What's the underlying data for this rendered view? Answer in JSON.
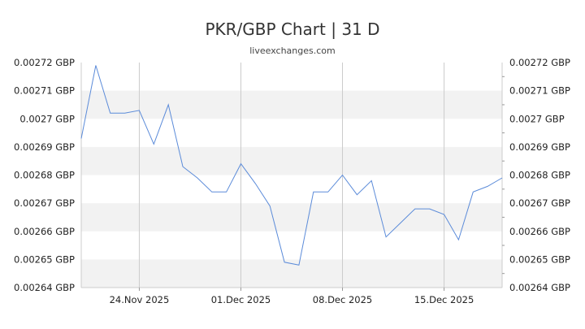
{
  "title": "PKR/GBP Chart | 31 D",
  "subtitle": "liveexchanges.com",
  "chart_data": {
    "type": "line",
    "title": "PKR/GBP Chart | 31 D",
    "subtitle": "liveexchanges.com",
    "xlabel": "",
    "ylabel": "",
    "x_tick_labels": [
      "24.Nov 2025",
      "01.Dec 2025",
      "08.Dec 2025",
      "15.Dec 2025"
    ],
    "x_tick_days": [
      4,
      11,
      18,
      25
    ],
    "y_tick_labels": [
      "0.00272 GBP",
      "0.00271 GBP",
      "0.0027 GBP",
      "0.00269 GBP",
      "0.00268 GBP",
      "0.00267 GBP",
      "0.00266 GBP",
      "0.00265 GBP",
      "0.00264 GBP"
    ],
    "y_tick_values": [
      0.00272,
      0.00271,
      0.0027,
      0.00269,
      0.00268,
      0.00267,
      0.00266,
      0.00265,
      0.00264
    ],
    "ylim": [
      0.00264,
      0.00272
    ],
    "grid": true,
    "line_color": "#5b8bd9",
    "band_color": "#f2f2f2",
    "series": [
      {
        "x": [
          "2025-11-20",
          "2025-11-21",
          "2025-11-22",
          "2025-11-23",
          "2025-11-24",
          "2025-11-25",
          "2025-11-26",
          "2025-11-27",
          "2025-11-28",
          "2025-11-29",
          "2025-11-30",
          "2025-12-01",
          "2025-12-02",
          "2025-12-03",
          "2025-12-04",
          "2025-12-05",
          "2025-12-06",
          "2025-12-07",
          "2025-12-08",
          "2025-12-09",
          "2025-12-10",
          "2025-12-11",
          "2025-12-12",
          "2025-12-13",
          "2025-12-14",
          "2025-12-15",
          "2025-12-16",
          "2025-12-17",
          "2025-12-18",
          "2025-12-19"
        ],
        "values": [
          0.002693,
          0.002719,
          0.002702,
          0.002702,
          0.002703,
          0.002691,
          0.002705,
          0.002683,
          0.002679,
          0.002674,
          0.002674,
          0.002684,
          0.002677,
          0.002669,
          0.002649,
          0.002648,
          0.002674,
          0.002674,
          0.00268,
          0.002673,
          0.002678,
          0.002658,
          0.002663,
          0.002668,
          0.002668,
          0.002666,
          0.002657,
          0.002674,
          0.002676,
          0.002679
        ]
      }
    ]
  }
}
